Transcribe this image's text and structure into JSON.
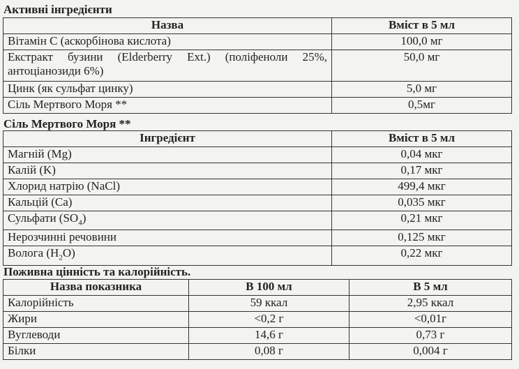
{
  "active": {
    "title": "Активні інгредієнти",
    "headers": [
      "Назва",
      "Вміст в 5 мл"
    ],
    "rows": [
      {
        "name": "Вітамін С (аскорбінова кислота)",
        "value": "100,0 мг"
      },
      {
        "name": "Екстракт бузини (Elderberry Ext.) (поліфеноли 25%, антоціанозиди 6%)",
        "value": "50,0 мг"
      },
      {
        "name": "Цинк (як сульфат цинку)",
        "value": "5,0 мг"
      },
      {
        "name": "Сіль Мертвого Моря **",
        "value": "0,5мг"
      }
    ]
  },
  "salt": {
    "title": "Сіль Мертвого Моря **",
    "headers": [
      "Інгредієнт",
      "Вміст в 5 мл"
    ],
    "rows": [
      {
        "name": "Магній (Mg)",
        "value": "0,04 мкг"
      },
      {
        "name": "Калій (K)",
        "value": "0,17 мкг"
      },
      {
        "name": "Хлорид натрію (NaCl)",
        "value": "499,4 мкг"
      },
      {
        "name": "Кальцій (Ca)",
        "value": "0,035 мкг"
      },
      {
        "name_pre": "Сульфати (SO",
        "name_sub": "4",
        "name_post": ")",
        "value": "0,21 мкг"
      },
      {
        "name": "Нерозчинні речовини",
        "value": "0,125 мкг"
      },
      {
        "name_pre": "Волога (H",
        "name_sub": "2",
        "name_post": "O)",
        "value": "0,22 мкг"
      }
    ]
  },
  "nutrition": {
    "title": "Поживна цінність та калорійність.",
    "headers": [
      "Назва показника",
      "В 100 мл",
      "В 5 мл"
    ],
    "rows": [
      {
        "name": "Калорійність",
        "per100": "59 ккал",
        "per5": "2,95 ккал"
      },
      {
        "name": "Жири",
        "per100": "<0,2 г",
        "per5": "<0,01г"
      },
      {
        "name": "Вуглеводи",
        "per100": "14,6 г",
        "per5": "0,73 г"
      },
      {
        "name": "Білки",
        "per100": "0,08 г",
        "per5": "0,004 г"
      }
    ]
  }
}
